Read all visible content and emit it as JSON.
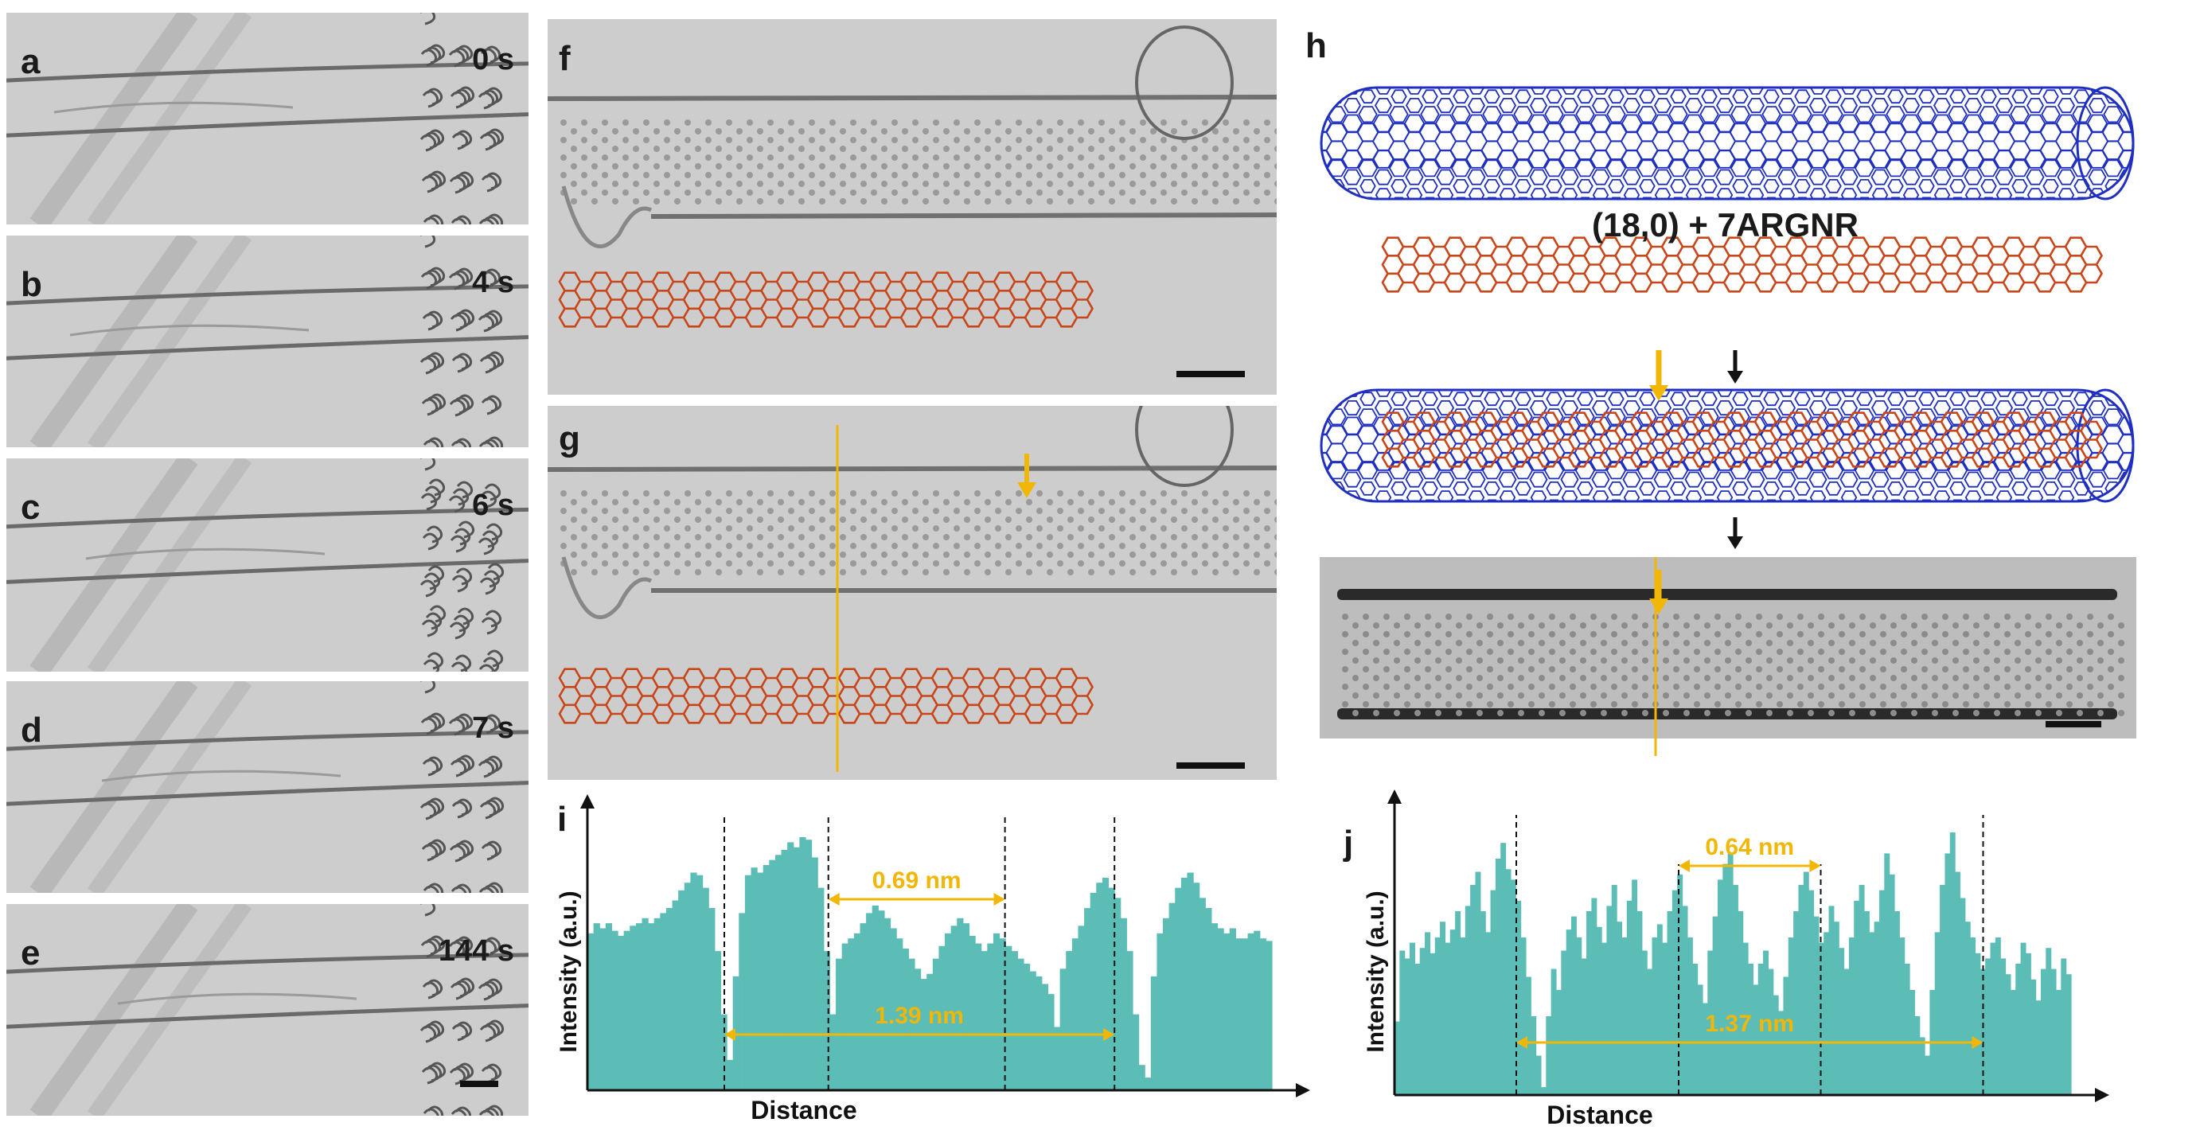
{
  "panels": {
    "a": {
      "label": "a",
      "time": "0 s"
    },
    "b": {
      "label": "b",
      "time": "4 s"
    },
    "c": {
      "label": "c",
      "time": "6 s"
    },
    "d": {
      "label": "d",
      "time": "7 s"
    },
    "e": {
      "label": "e",
      "time": "144 s"
    },
    "f": {
      "label": "f"
    },
    "g": {
      "label": "g"
    },
    "h": {
      "label": "h",
      "equation": "(18,0)  +  7ARGNR"
    },
    "i": {
      "label": "i"
    },
    "j": {
      "label": "j"
    }
  },
  "colors": {
    "nanotube": "#1f2fbf",
    "ribbon": "#c8461a",
    "arrow": "#f2b705",
    "bars": "#5bbdb6",
    "tem_bg": "#cfcfcf"
  },
  "chart_data": [
    {
      "type": "bar",
      "panel": "i",
      "xlabel": "Distance",
      "ylabel": "Intensity (a.u.)",
      "annotations": [
        "0.69 nm",
        "1.39 nm"
      ],
      "values": [
        62,
        66,
        64,
        66,
        63,
        61,
        63,
        65,
        66,
        68,
        66,
        68,
        70,
        72,
        75,
        79,
        82,
        86,
        85,
        80,
        72,
        55,
        30,
        12,
        45,
        70,
        85,
        88,
        86,
        89,
        91,
        93,
        95,
        98,
        96,
        100,
        99,
        92,
        80,
        55,
        30,
        52,
        58,
        60,
        62,
        66,
        70,
        73,
        71,
        68,
        64,
        60,
        56,
        52,
        48,
        44,
        46,
        52,
        57,
        62,
        65,
        68,
        66,
        61,
        58,
        55,
        58,
        62,
        60,
        57,
        55,
        52,
        50,
        47,
        45,
        42,
        38,
        25,
        48,
        55,
        60,
        65,
        72,
        78,
        82,
        84,
        80,
        76,
        68,
        55,
        30,
        10,
        5,
        45,
        62,
        68,
        74,
        80,
        84,
        86,
        82,
        76,
        72,
        66,
        64,
        62,
        64,
        60,
        60,
        62,
        63,
        60,
        59
      ]
    },
    {
      "type": "bar",
      "panel": "j",
      "xlabel": "Distance",
      "ylabel": "Intensity (a.u.)",
      "annotations": [
        "0.64 nm",
        "1.37 nm"
      ],
      "values": [
        28,
        55,
        52,
        58,
        50,
        56,
        62,
        54,
        60,
        66,
        58,
        63,
        70,
        60,
        72,
        80,
        85,
        70,
        62,
        78,
        90,
        96,
        86,
        82,
        74,
        60,
        45,
        30,
        15,
        3,
        30,
        48,
        40,
        55,
        63,
        68,
        60,
        52,
        70,
        75,
        64,
        58,
        72,
        80,
        66,
        60,
        74,
        82,
        70,
        55,
        48,
        60,
        65,
        58,
        70,
        78,
        84,
        72,
        60,
        50,
        42,
        35,
        55,
        68,
        82,
        88,
        92,
        80,
        70,
        58,
        50,
        42,
        50,
        55,
        48,
        38,
        32,
        45,
        60,
        70,
        80,
        85,
        78,
        68,
        58,
        62,
        72,
        66,
        56,
        48,
        60,
        74,
        80,
        70,
        62,
        66,
        78,
        92,
        84,
        70,
        60,
        50,
        40,
        30,
        22,
        15,
        40,
        62,
        80,
        92,
        100,
        85,
        75,
        66,
        60,
        54,
        48,
        52,
        58,
        60,
        52,
        46,
        40,
        50,
        58,
        54,
        44,
        36,
        48,
        56,
        48,
        40,
        52,
        46
      ]
    }
  ]
}
